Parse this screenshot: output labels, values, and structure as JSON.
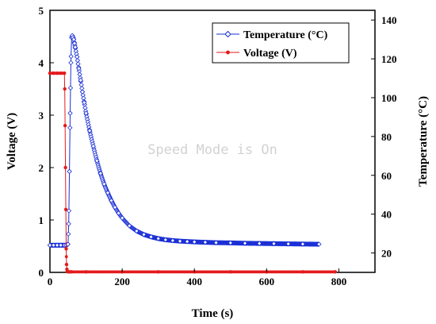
{
  "watermark": "Speed Mode is On",
  "chart_data": {
    "type": "line",
    "xlabel": "Time (s)",
    "ylabel_left": "Voltage (V)",
    "ylabel_right": "Temperature (°C)",
    "xlim": [
      0,
      900
    ],
    "ylim_left": [
      0,
      5
    ],
    "ylim_right": [
      10,
      145
    ],
    "x_ticks": [
      "0",
      "200",
      "400",
      "600",
      "800"
    ],
    "y_ticks_left": [
      "0",
      "1",
      "2",
      "3",
      "4",
      "5"
    ],
    "y_ticks_right": [
      "20",
      "40",
      "60",
      "80",
      "100",
      "120",
      "140"
    ],
    "legend_position": "top-right",
    "grid": false,
    "series": [
      {
        "name": "Temperature (°C)",
        "axis": "right",
        "color": "#1a2fd6",
        "marker": "open-diamond",
        "x": [
          0,
          10,
          20,
          30,
          40,
          45,
          50,
          52,
          54,
          56,
          58,
          60,
          62,
          64,
          66,
          68,
          70,
          75,
          80,
          85,
          90,
          95,
          100,
          110,
          120,
          130,
          140,
          150,
          160,
          170,
          180,
          190,
          200,
          220,
          240,
          260,
          280,
          300,
          320,
          340,
          360,
          380,
          400,
          430,
          460,
          500,
          540,
          580,
          620,
          660,
          700,
          745
        ],
        "y": [
          24,
          24,
          24,
          24,
          24,
          24,
          24.5,
          35,
          62,
          92,
          118,
          131,
          132,
          131,
          130,
          128,
          126,
          121,
          115,
          109,
          103,
          97.5,
          92,
          83,
          75,
          67.5,
          61,
          55.5,
          51,
          47,
          43.5,
          40.5,
          38,
          34,
          31.3,
          29.5,
          28.3,
          27.4,
          26.8,
          26.4,
          26.1,
          25.9,
          25.7,
          25.5,
          25.3,
          25.2,
          25.0,
          24.9,
          24.8,
          24.7,
          24.6,
          24.5
        ]
      },
      {
        "name": "Voltage (V)",
        "axis": "left",
        "color": "#e41a1c",
        "marker": "filled-circle",
        "x": [
          0,
          10,
          20,
          30,
          40,
          41,
          42,
          43,
          44,
          45,
          46,
          47,
          48,
          50,
          55,
          60,
          100,
          200,
          300,
          400,
          500,
          600,
          700,
          790
        ],
        "y": [
          3.8,
          3.8,
          3.8,
          3.8,
          3.8,
          3.5,
          2.8,
          2.0,
          1.2,
          0.45,
          0.15,
          0.06,
          0.02,
          0.01,
          0.01,
          0.01,
          0.01,
          0.01,
          0.01,
          0.01,
          0.01,
          0.01,
          0.01,
          0.01
        ]
      }
    ]
  }
}
